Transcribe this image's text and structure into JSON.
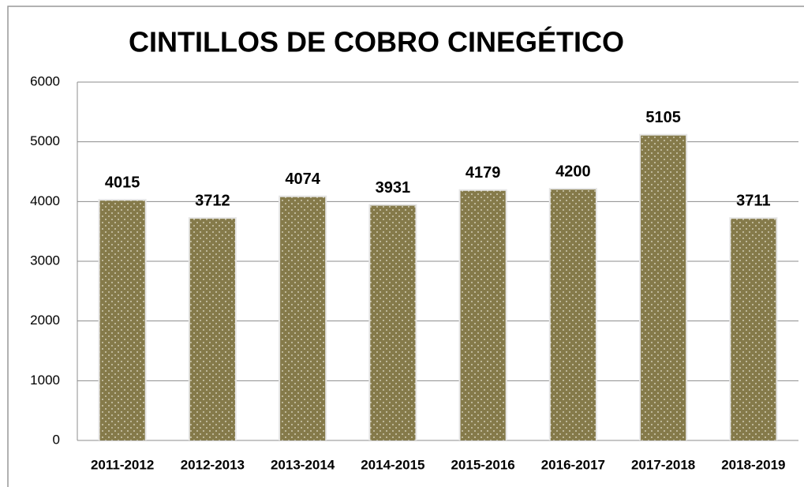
{
  "chart_data": {
    "type": "bar",
    "title": "CINTILLOS DE COBRO CINEGÉTICO",
    "categories": [
      "2011-2012",
      "2012-2013",
      "2013-2014",
      "2014-2015",
      "2015-2016",
      "2016-2017",
      "2017-2018",
      "2018-2019"
    ],
    "values": [
      4015,
      3712,
      4074,
      3931,
      4179,
      4200,
      5105,
      3711
    ],
    "color": "#857a4a",
    "ylim": [
      0,
      6000
    ],
    "yticks": [
      0,
      1000,
      2000,
      3000,
      4000,
      5000,
      6000
    ],
    "grid": true
  }
}
